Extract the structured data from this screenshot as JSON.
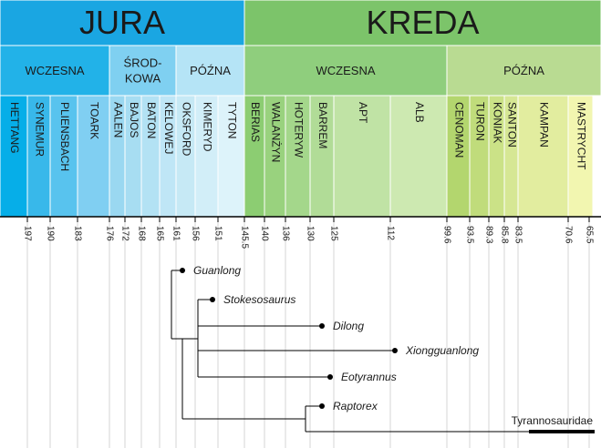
{
  "periods": [
    {
      "label": "JURA",
      "color": "#1aa6e2"
    },
    {
      "label": "KREDA",
      "color": "#7cc46a"
    }
  ],
  "epochs": [
    {
      "lines": [
        "WCZESNA"
      ],
      "color": "#22b2e8"
    },
    {
      "lines": [
        "ŚROD-",
        "KOWA"
      ],
      "color": "#7fd0f1"
    },
    {
      "lines": [
        "PÓŹNA"
      ],
      "color": "#b5e4f6"
    },
    {
      "lines": [
        "WCZESNA"
      ],
      "color": "#8fce7d"
    },
    {
      "lines": [
        "PÓŹNA"
      ],
      "color": "#b9db92"
    }
  ],
  "stages": [
    {
      "label": "HETTANG",
      "color": "#06aee8"
    },
    {
      "label": "SYNEMUR",
      "color": "#38b8ea"
    },
    {
      "label": "PLIENSBACH",
      "color": "#58c3ee"
    },
    {
      "label": "TOARK",
      "color": "#80cff2"
    },
    {
      "label": "AALEN",
      "color": "#9ad8f1"
    },
    {
      "label": "BAJOS",
      "color": "#a7ddf2"
    },
    {
      "label": "BATON",
      "color": "#b3e2f4"
    },
    {
      "label": "KELOWEJ",
      "color": "#bfe6f6"
    },
    {
      "label": "OKSFORD",
      "color": "#c6e9f5"
    },
    {
      "label": "KIMERYD",
      "color": "#d2eef8"
    },
    {
      "label": "TYTON",
      "color": "#ddf3fa"
    },
    {
      "label": "BERIAS",
      "color": "#8ccd72"
    },
    {
      "label": "WALANŻYN",
      "color": "#99d27e"
    },
    {
      "label": "HOTERYW",
      "color": "#a4d78b"
    },
    {
      "label": "BARREM",
      "color": "#b1dc97"
    },
    {
      "label": "APT",
      "color": "#c0e3a5"
    },
    {
      "label": "ALB",
      "color": "#cde9b1"
    },
    {
      "label": "CENOMAN",
      "color": "#b3d66e"
    },
    {
      "label": "TURON",
      "color": "#c0dc7b"
    },
    {
      "label": "KONIAK",
      "color": "#cbe287"
    },
    {
      "label": "SANTON",
      "color": "#d6e794"
    },
    {
      "label": "KAMPAN",
      "color": "#e2ed9f"
    },
    {
      "label": "MASTRYCHT",
      "color": "#f2f6b0"
    }
  ],
  "ticks": [
    197,
    190,
    183,
    176,
    172,
    168,
    165,
    161,
    156,
    151,
    145.5,
    140,
    136,
    130,
    125,
    112,
    99.6,
    93.5,
    89.3,
    85.8,
    83.5,
    70.6,
    65.5
  ],
  "taxa": [
    "Guanlong",
    "Stokesosaurus",
    "Dilong",
    "Xiongguanlong",
    "Eotyrannus",
    "Raptorex"
  ],
  "outgroup": "Tyrannosauridae"
}
